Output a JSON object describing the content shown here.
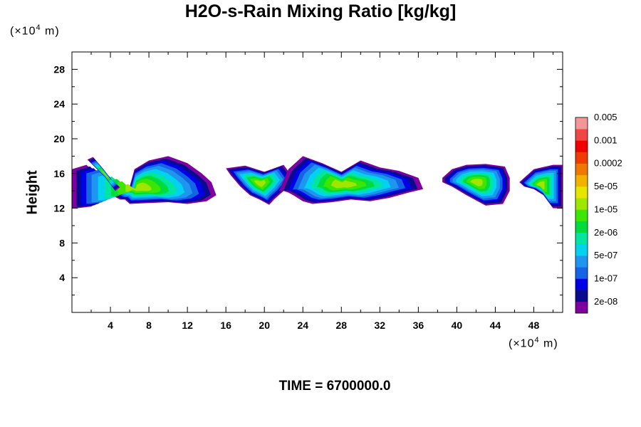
{
  "chart_data": {
    "type": "contour",
    "title": "H2O-s-Rain Mixing Ratio [kg/kg]",
    "ylabel": "Height",
    "x_unit": [
      "(×10",
      "4",
      " m)"
    ],
    "y_unit": [
      "(×10",
      "4",
      " m)"
    ],
    "xlim": [
      0,
      51
    ],
    "ylim": [
      0,
      30
    ],
    "x_ticks": [
      4,
      8,
      12,
      16,
      20,
      24,
      28,
      32,
      36,
      40,
      44,
      48
    ],
    "y_ticks": [
      4,
      8,
      12,
      16,
      20,
      24,
      28
    ],
    "footer": "TIME = 6700000.0",
    "colorbar": {
      "colors": [
        "#7f00a0",
        "#0a0a8c",
        "#0000e6",
        "#1464e6",
        "#1e96f0",
        "#00d2f0",
        "#00e6a0",
        "#00dc3c",
        "#3ce600",
        "#a0e600",
        "#e6e600",
        "#f0b400",
        "#f07800",
        "#f03c00",
        "#f00000",
        "#f04646",
        "#f59696"
      ],
      "labels": [
        "2e-08",
        "1e-07",
        "5e-07",
        "2e-06",
        "1e-05",
        "5e-05",
        "0.0002",
        "0.001",
        "0.005"
      ]
    },
    "clouds": [
      {
        "x": [
          0,
          1.5,
          3,
          4.5,
          5.5,
          6,
          6.5,
          8,
          10,
          12,
          13.5,
          14.5,
          15,
          14,
          12,
          10,
          8,
          6,
          5.5,
          5,
          4,
          3,
          2,
          0.5,
          0
        ],
        "y": [
          16.5,
          17,
          15.5,
          14.5,
          14,
          14.5,
          16.5,
          17.5,
          18,
          17.2,
          16,
          15,
          13.5,
          12.8,
          12.5,
          12.7,
          12.6,
          12.5,
          13,
          13,
          13.6,
          12.8,
          12.2,
          12,
          12
        ]
      },
      {
        "x": [
          1.6,
          2.2,
          3.2,
          4.2,
          5,
          4.5,
          3.5
        ],
        "y": [
          17.6,
          17.9,
          16.6,
          15.2,
          14.4,
          14,
          15.5
        ]
      },
      {
        "x": [
          16,
          18,
          20,
          22,
          23,
          22,
          21,
          20.5,
          19.5,
          18.5,
          17.5,
          16.5
        ],
        "y": [
          16.6,
          16.9,
          16.2,
          17,
          15.5,
          14,
          13,
          12.4,
          13,
          13.5,
          14.5,
          15.8
        ]
      },
      {
        "x": [
          21.5,
          22.5,
          24,
          26,
          28,
          30,
          32,
          34,
          36,
          36.5,
          35,
          33,
          31,
          29,
          27,
          25,
          24,
          23,
          22.5,
          22
        ],
        "y": [
          14,
          16.5,
          18,
          17.2,
          16.2,
          17.5,
          16.7,
          16.3,
          15.5,
          14.2,
          13.8,
          13.2,
          12.8,
          13,
          12.7,
          12.5,
          12.8,
          13.5,
          13.8,
          14
        ]
      },
      {
        "x": [
          38.5,
          39.5,
          41,
          43,
          45,
          45.5,
          45.5,
          44.8,
          43,
          41,
          39.5,
          38.5
        ],
        "y": [
          15.5,
          16.5,
          17,
          17.1,
          16.8,
          15.5,
          14,
          12.5,
          12.3,
          13.5,
          14.5,
          15
        ]
      },
      {
        "x": [
          46.5,
          48,
          50,
          51,
          51,
          50,
          49,
          48,
          47,
          46.5
        ],
        "y": [
          15,
          16.5,
          17,
          17,
          12,
          12,
          13.5,
          14.2,
          14.5,
          15
        ]
      }
    ]
  }
}
